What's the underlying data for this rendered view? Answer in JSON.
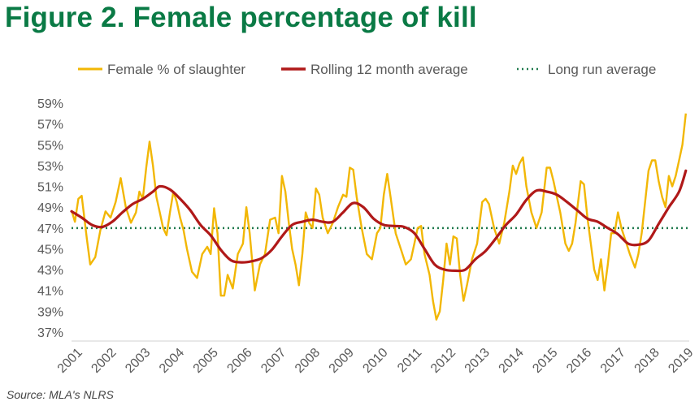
{
  "title": "Figure 2. Female percentage of kill",
  "source": "Source: MLA's NLRS",
  "colors": {
    "title": "#0a7a45",
    "monthly": "#f2b705",
    "rolling": "#b01919",
    "longrun": "#1f7a4d",
    "tick": "#595959"
  },
  "chart_data": {
    "type": "line",
    "title": "Figure 2. Female percentage of kill",
    "xlabel": "",
    "ylabel": "",
    "y_unit": "%",
    "ylim": [
      37,
      59
    ],
    "yticks": [
      59,
      57,
      55,
      53,
      51,
      49,
      47,
      45,
      43,
      41,
      39,
      37
    ],
    "ytick_labels": [
      "59%",
      "57%",
      "55%",
      "53%",
      "51%",
      "49%",
      "47%",
      "45%",
      "43%",
      "41%",
      "39%",
      "37%"
    ],
    "xlim": [
      2001,
      2019.2
    ],
    "xticks": [
      "2001",
      "2002",
      "2003",
      "2004",
      "2005",
      "2006",
      "2007",
      "2008",
      "2009",
      "2010",
      "2011",
      "2012",
      "2013",
      "2014",
      "2015",
      "2016",
      "2017",
      "2018",
      "2019"
    ],
    "grid": false,
    "legend_position": "top",
    "series": [
      {
        "name": "Female % of slaughter",
        "style": "solid",
        "points": [
          [
            2001.0,
            48.7
          ],
          [
            2001.1,
            47.6
          ],
          [
            2001.2,
            49.8
          ],
          [
            2001.3,
            50.1
          ],
          [
            2001.45,
            46.0
          ],
          [
            2001.55,
            43.5
          ],
          [
            2001.7,
            44.2
          ],
          [
            2001.85,
            46.8
          ],
          [
            2002.0,
            48.6
          ],
          [
            2002.15,
            48.0
          ],
          [
            2002.3,
            49.5
          ],
          [
            2002.45,
            51.8
          ],
          [
            2002.6,
            49.0
          ],
          [
            2002.75,
            47.5
          ],
          [
            2002.9,
            48.5
          ],
          [
            2003.0,
            50.5
          ],
          [
            2003.1,
            49.8
          ],
          [
            2003.2,
            52.8
          ],
          [
            2003.3,
            55.3
          ],
          [
            2003.4,
            53.0
          ],
          [
            2003.5,
            50.0
          ],
          [
            2003.6,
            48.5
          ],
          [
            2003.7,
            47.0
          ],
          [
            2003.8,
            46.3
          ],
          [
            2003.9,
            48.5
          ],
          [
            2004.0,
            50.5
          ],
          [
            2004.1,
            49.5
          ],
          [
            2004.2,
            48.0
          ],
          [
            2004.3,
            46.8
          ],
          [
            2004.4,
            45.0
          ],
          [
            2004.55,
            42.8
          ],
          [
            2004.7,
            42.2
          ],
          [
            2004.85,
            44.5
          ],
          [
            2005.0,
            45.2
          ],
          [
            2005.1,
            44.5
          ],
          [
            2005.2,
            48.9
          ],
          [
            2005.3,
            46.5
          ],
          [
            2005.4,
            40.5
          ],
          [
            2005.5,
            40.5
          ],
          [
            2005.6,
            42.5
          ],
          [
            2005.75,
            41.2
          ],
          [
            2005.9,
            44.5
          ],
          [
            2006.05,
            45.5
          ],
          [
            2006.15,
            49.0
          ],
          [
            2006.25,
            46.5
          ],
          [
            2006.4,
            41.0
          ],
          [
            2006.55,
            43.5
          ],
          [
            2006.7,
            44.5
          ],
          [
            2006.85,
            47.8
          ],
          [
            2007.0,
            48.0
          ],
          [
            2007.1,
            46.5
          ],
          [
            2007.2,
            52.0
          ],
          [
            2007.3,
            50.5
          ],
          [
            2007.4,
            47.5
          ],
          [
            2007.5,
            45.0
          ],
          [
            2007.6,
            43.5
          ],
          [
            2007.7,
            41.5
          ],
          [
            2007.8,
            44.5
          ],
          [
            2007.9,
            48.5
          ],
          [
            2008.0,
            47.5
          ],
          [
            2008.1,
            47.0
          ],
          [
            2008.2,
            50.8
          ],
          [
            2008.3,
            50.2
          ],
          [
            2008.4,
            48.0
          ],
          [
            2008.55,
            46.5
          ],
          [
            2008.7,
            47.5
          ],
          [
            2008.85,
            49.0
          ],
          [
            2009.0,
            50.2
          ],
          [
            2009.1,
            50.0
          ],
          [
            2009.2,
            52.8
          ],
          [
            2009.3,
            52.6
          ],
          [
            2009.4,
            50.0
          ],
          [
            2009.55,
            47.0
          ],
          [
            2009.7,
            44.5
          ],
          [
            2009.85,
            44.0
          ],
          [
            2010.0,
            46.5
          ],
          [
            2010.1,
            47.0
          ],
          [
            2010.2,
            50.2
          ],
          [
            2010.3,
            52.2
          ],
          [
            2010.4,
            50.0
          ],
          [
            2010.55,
            46.5
          ],
          [
            2010.7,
            45.0
          ],
          [
            2010.85,
            43.5
          ],
          [
            2011.0,
            44.0
          ],
          [
            2011.1,
            45.5
          ],
          [
            2011.2,
            47.0
          ],
          [
            2011.3,
            47.2
          ],
          [
            2011.4,
            44.5
          ],
          [
            2011.55,
            42.5
          ],
          [
            2011.65,
            40.0
          ],
          [
            2011.75,
            38.2
          ],
          [
            2011.85,
            39.0
          ],
          [
            2011.95,
            42.0
          ],
          [
            2012.05,
            45.5
          ],
          [
            2012.15,
            43.5
          ],
          [
            2012.25,
            46.2
          ],
          [
            2012.35,
            46.0
          ],
          [
            2012.45,
            42.5
          ],
          [
            2012.55,
            40.0
          ],
          [
            2012.65,
            41.5
          ],
          [
            2012.8,
            44.0
          ],
          [
            2012.95,
            45.5
          ],
          [
            2013.1,
            49.5
          ],
          [
            2013.2,
            49.8
          ],
          [
            2013.3,
            49.3
          ],
          [
            2013.45,
            47.0
          ],
          [
            2013.6,
            45.5
          ],
          [
            2013.75,
            47.5
          ],
          [
            2013.9,
            50.5
          ],
          [
            2014.0,
            53.0
          ],
          [
            2014.1,
            52.2
          ],
          [
            2014.2,
            53.2
          ],
          [
            2014.3,
            53.8
          ],
          [
            2014.4,
            51.0
          ],
          [
            2014.55,
            48.5
          ],
          [
            2014.7,
            47.0
          ],
          [
            2014.85,
            48.5
          ],
          [
            2015.0,
            52.8
          ],
          [
            2015.1,
            52.8
          ],
          [
            2015.2,
            51.5
          ],
          [
            2015.3,
            50.0
          ],
          [
            2015.4,
            48.5
          ],
          [
            2015.55,
            45.5
          ],
          [
            2015.65,
            44.8
          ],
          [
            2015.75,
            45.5
          ],
          [
            2015.85,
            47.5
          ],
          [
            2016.0,
            51.5
          ],
          [
            2016.1,
            51.2
          ],
          [
            2016.2,
            48.0
          ],
          [
            2016.3,
            45.5
          ],
          [
            2016.4,
            43.0
          ],
          [
            2016.5,
            42.0
          ],
          [
            2016.6,
            44.0
          ],
          [
            2016.7,
            41.0
          ],
          [
            2016.8,
            43.5
          ],
          [
            2016.9,
            46.5
          ],
          [
            2017.0,
            46.5
          ],
          [
            2017.1,
            48.5
          ],
          [
            2017.2,
            47.0
          ],
          [
            2017.3,
            46.0
          ],
          [
            2017.45,
            44.5
          ],
          [
            2017.6,
            43.2
          ],
          [
            2017.7,
            44.5
          ],
          [
            2017.8,
            46.5
          ],
          [
            2017.9,
            49.5
          ],
          [
            2018.0,
            52.5
          ],
          [
            2018.1,
            53.5
          ],
          [
            2018.2,
            53.5
          ],
          [
            2018.3,
            51.5
          ],
          [
            2018.4,
            50.0
          ],
          [
            2018.5,
            49.0
          ],
          [
            2018.6,
            52.0
          ],
          [
            2018.7,
            51.0
          ],
          [
            2018.8,
            52.0
          ],
          [
            2018.9,
            53.5
          ],
          [
            2019.0,
            55.0
          ],
          [
            2019.1,
            58.0
          ]
        ]
      },
      {
        "name": "Rolling 12 month average",
        "style": "solid",
        "points": [
          [
            2001.0,
            48.6
          ],
          [
            2001.3,
            48.0
          ],
          [
            2001.6,
            47.3
          ],
          [
            2001.9,
            47.1
          ],
          [
            2002.2,
            47.6
          ],
          [
            2002.5,
            48.5
          ],
          [
            2002.8,
            49.3
          ],
          [
            2003.1,
            49.8
          ],
          [
            2003.4,
            50.5
          ],
          [
            2003.6,
            51.0
          ],
          [
            2003.9,
            50.7
          ],
          [
            2004.2,
            49.8
          ],
          [
            2004.5,
            48.7
          ],
          [
            2004.8,
            47.3
          ],
          [
            2005.1,
            46.3
          ],
          [
            2005.4,
            44.9
          ],
          [
            2005.7,
            43.9
          ],
          [
            2006.0,
            43.7
          ],
          [
            2006.3,
            43.8
          ],
          [
            2006.6,
            44.1
          ],
          [
            2006.9,
            44.9
          ],
          [
            2007.2,
            46.2
          ],
          [
            2007.5,
            47.3
          ],
          [
            2007.8,
            47.6
          ],
          [
            2008.1,
            47.8
          ],
          [
            2008.4,
            47.6
          ],
          [
            2008.7,
            47.6
          ],
          [
            2009.0,
            48.5
          ],
          [
            2009.3,
            49.4
          ],
          [
            2009.6,
            49.0
          ],
          [
            2009.9,
            47.9
          ],
          [
            2010.2,
            47.3
          ],
          [
            2010.5,
            47.2
          ],
          [
            2010.8,
            47.1
          ],
          [
            2011.1,
            46.5
          ],
          [
            2011.4,
            45.0
          ],
          [
            2011.7,
            43.5
          ],
          [
            2012.0,
            43.0
          ],
          [
            2012.3,
            42.9
          ],
          [
            2012.6,
            43.0
          ],
          [
            2012.9,
            44.0
          ],
          [
            2013.2,
            44.8
          ],
          [
            2013.5,
            46.0
          ],
          [
            2013.8,
            47.3
          ],
          [
            2014.1,
            48.3
          ],
          [
            2014.4,
            49.7
          ],
          [
            2014.7,
            50.6
          ],
          [
            2015.0,
            50.5
          ],
          [
            2015.3,
            50.2
          ],
          [
            2015.6,
            49.5
          ],
          [
            2015.9,
            48.7
          ],
          [
            2016.2,
            47.9
          ],
          [
            2016.5,
            47.6
          ],
          [
            2016.8,
            47.0
          ],
          [
            2017.1,
            46.4
          ],
          [
            2017.4,
            45.5
          ],
          [
            2017.7,
            45.4
          ],
          [
            2018.0,
            45.8
          ],
          [
            2018.3,
            47.4
          ],
          [
            2018.6,
            49.0
          ],
          [
            2018.9,
            50.5
          ],
          [
            2019.1,
            52.5
          ]
        ]
      },
      {
        "name": "Long run average",
        "style": "dotted",
        "value": 47.0
      }
    ]
  }
}
